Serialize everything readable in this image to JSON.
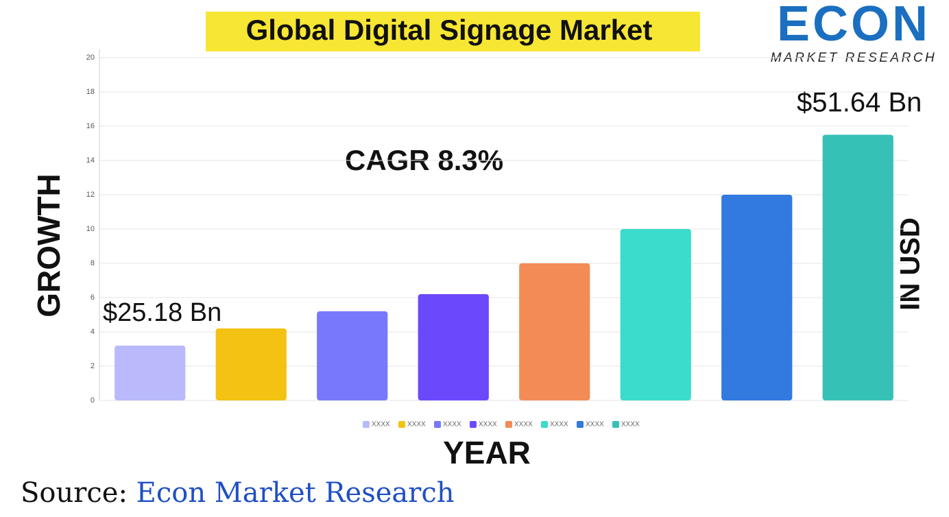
{
  "chart_data": {
    "type": "bar",
    "title": "Global Digital Signage Market",
    "y_label": "GROWTH",
    "y2_label": "IN USD",
    "x_label": "YEAR",
    "annotations": [
      "$25.18 Bn",
      "CAGR  8.3%",
      "$51.64 Bn"
    ],
    "ylim": [
      0,
      20
    ],
    "yticks": [
      0,
      2,
      4,
      6,
      8,
      10,
      12,
      14,
      16,
      18,
      20
    ],
    "grid": true,
    "series": [
      {
        "name": "XXXX",
        "color": "#b9b9fb",
        "values": [
          3.2
        ]
      },
      {
        "name": "XXXX",
        "color": "#f3c212",
        "values": [
          4.2
        ]
      },
      {
        "name": "XXXX",
        "color": "#7878fc",
        "values": [
          5.2
        ]
      },
      {
        "name": "XXXX",
        "color": "#6c48fc",
        "values": [
          6.2
        ]
      },
      {
        "name": "XXXX",
        "color": "#f38b57",
        "values": [
          8
        ]
      },
      {
        "name": "XXXX",
        "color": "#3bdccb",
        "values": [
          10
        ]
      },
      {
        "name": "XXXX",
        "color": "#3279e0",
        "values": [
          12
        ]
      },
      {
        "name": "XXXX",
        "color": "#36c1b7",
        "values": [
          15.5
        ]
      }
    ]
  },
  "logo": {
    "name": "ECON",
    "tagline": "MARKET RESEARCH"
  },
  "source": {
    "label": "Source:",
    "text": "Econ Market Research"
  }
}
